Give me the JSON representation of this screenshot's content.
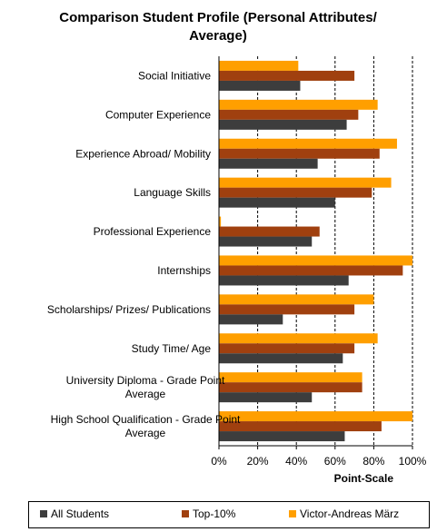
{
  "chart_data": {
    "type": "bar",
    "orientation": "horizontal",
    "title_lines": [
      "Comparison Student Profile (Personal Attributes/",
      "Average)"
    ],
    "xlabel": "Point-Scale",
    "xlim": [
      0,
      100
    ],
    "xticks": [
      "0%",
      "20%",
      "40%",
      "60%",
      "80%",
      "100%"
    ],
    "grid": "vertical dashed",
    "legend_position": "bottom",
    "colors": {
      "All Students": "#3d3d3d",
      "Top-10%": "#a0400f",
      "Victor-Andreas März": "#ff9f00"
    },
    "categories": [
      {
        "lines": [
          "Social Initiative"
        ]
      },
      {
        "lines": [
          "Computer Experience"
        ]
      },
      {
        "lines": [
          "Experience Abroad/ Mobility"
        ]
      },
      {
        "lines": [
          "Language Skills"
        ]
      },
      {
        "lines": [
          "Professional Experience"
        ]
      },
      {
        "lines": [
          "Internships"
        ]
      },
      {
        "lines": [
          "Scholarships/ Prizes/ Publications"
        ]
      },
      {
        "lines": [
          "Study Time/ Age"
        ]
      },
      {
        "lines": [
          "University Diploma - Grade Point",
          "Average"
        ]
      },
      {
        "lines": [
          "High School Qualification - Grade Point",
          "Average"
        ]
      }
    ],
    "series": [
      {
        "name": "Victor-Andreas März",
        "values": [
          41,
          82,
          92,
          89,
          1,
          100,
          80,
          82,
          74,
          100
        ]
      },
      {
        "name": "Top-10%",
        "values": [
          70,
          72,
          83,
          79,
          52,
          95,
          70,
          70,
          74,
          84
        ]
      },
      {
        "name": "All Students",
        "values": [
          42,
          66,
          51,
          60,
          48,
          67,
          33,
          64,
          48,
          65
        ]
      }
    ],
    "legend_order": [
      "All Students",
      "Top-10%",
      "Victor-Andreas März"
    ]
  }
}
